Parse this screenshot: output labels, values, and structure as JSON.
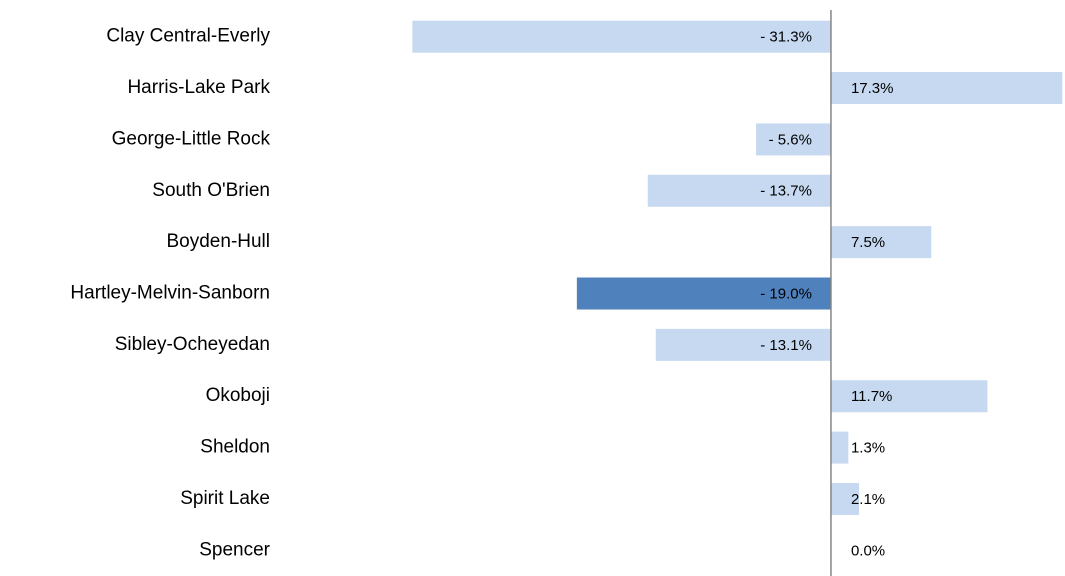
{
  "chart_data": {
    "type": "bar",
    "orientation": "horizontal",
    "categories": [
      "Clay Central-Everly",
      "Harris-Lake Park",
      "George-Little Rock",
      "South O'Brien",
      "Boyden-Hull",
      "Hartley-Melvin-Sanborn",
      "Sibley-Ocheyedan",
      "Okoboji",
      "Sheldon",
      "Spirit Lake",
      "Spencer"
    ],
    "values": [
      -31.3,
      17.3,
      -5.6,
      -13.7,
      7.5,
      -19.0,
      -13.1,
      11.7,
      1.3,
      2.1,
      0.0
    ],
    "value_labels": [
      "- 31.3%",
      "17.3%",
      "- 5.6%",
      "- 13.7%",
      "7.5%",
      "- 19.0%",
      "- 13.1%",
      "11.7%",
      "1.3%",
      "2.1%",
      "0.0%"
    ],
    "colors": [
      "#c6d9f1",
      "#c6d9f1",
      "#c6d9f1",
      "#c6d9f1",
      "#c6d9f1",
      "#4f81bd",
      "#c6d9f1",
      "#c6d9f1",
      "#c6d9f1",
      "#c6d9f1",
      "#c6d9f1"
    ],
    "xlim": [
      -32,
      17.5
    ],
    "grid": false
  }
}
